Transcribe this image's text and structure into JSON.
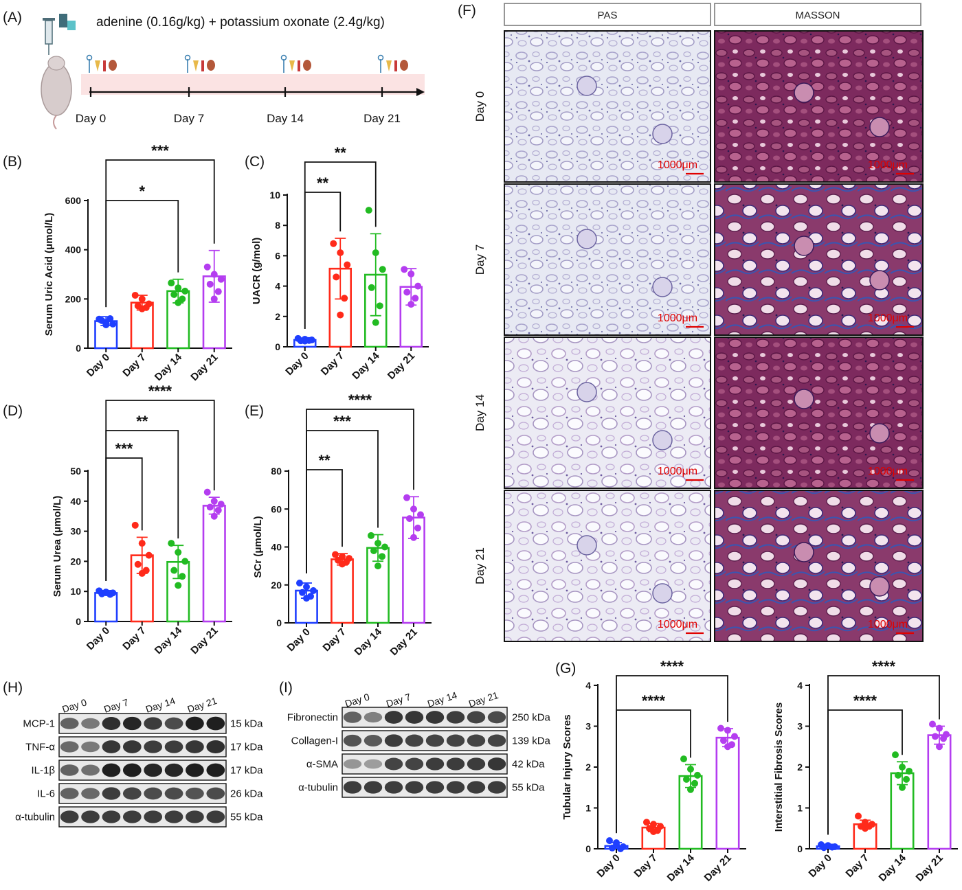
{
  "panels": {
    "A": "(A)",
    "B": "(B)",
    "C": "(C)",
    "D": "(D)",
    "E": "(E)",
    "F": "(F)",
    "G": "(G)",
    "H": "(H)",
    "I": "(I)"
  },
  "timeline": {
    "treatment": "adenine (0.16g/kg) + potassium oxonate (2.4g/kg)",
    "days": [
      "Day 0",
      "Day 7",
      "Day 14",
      "Day 21"
    ]
  },
  "colors": {
    "day0": "#1f3fff",
    "day7": "#ff2a1a",
    "day14": "#22bb22",
    "day21": "#b43df0"
  },
  "chart_data": [
    {
      "id": "B",
      "type": "bar",
      "ylabel": "Serum Uric Acid (μmol/L)",
      "categories": [
        "Day 0",
        "Day 7",
        "Day 14",
        "Day 21"
      ],
      "ylim": [
        0,
        600
      ],
      "yticks": [
        0,
        200,
        400,
        600
      ],
      "values": [
        110,
        185,
        232,
        292
      ],
      "sd": [
        18,
        30,
        48,
        105
      ],
      "points": [
        [
          118,
          105,
          98,
          112,
          120,
          95
        ],
        [
          215,
          200,
          180,
          172,
          165,
          160
        ],
        [
          265,
          245,
          232,
          218,
          200,
          185
        ],
        [
          330,
          300,
          280,
          260,
          230,
          200
        ]
      ],
      "significance": [
        {
          "from": "Day 0",
          "to": "Day 14",
          "label": "*"
        },
        {
          "from": "Day 0",
          "to": "Day 21",
          "label": "***"
        }
      ]
    },
    {
      "id": "C",
      "type": "bar",
      "ylabel": "UACR (g/mol)",
      "categories": [
        "Day 0",
        "Day 7",
        "Day 14",
        "Day 21"
      ],
      "ylim": [
        0,
        10
      ],
      "yticks": [
        0,
        2,
        4,
        6,
        8,
        10
      ],
      "values": [
        0.45,
        5.15,
        4.75,
        3.95
      ],
      "sd": [
        0.1,
        2.0,
        2.7,
        1.2
      ],
      "points": [
        [
          0.55,
          0.5,
          0.45,
          0.4,
          0.42,
          0.38
        ],
        [
          6.8,
          6.2,
          5.4,
          4.6,
          3.2,
          2.1
        ],
        [
          9.0,
          6.2,
          5.1,
          3.9,
          2.7,
          1.6
        ],
        [
          5.1,
          4.8,
          4.0,
          3.6,
          3.2,
          2.8
        ]
      ],
      "significance": [
        {
          "from": "Day 0",
          "to": "Day 7",
          "label": "**"
        },
        {
          "from": "Day 0",
          "to": "Day 14",
          "label": "**"
        }
      ]
    },
    {
      "id": "D",
      "type": "bar",
      "ylabel": "Serum Urea (μmol/L)",
      "categories": [
        "Day 0",
        "Day 7",
        "Day 14",
        "Day 21"
      ],
      "ylim": [
        0,
        50
      ],
      "yticks": [
        0,
        10,
        20,
        30,
        40,
        50
      ],
      "values": [
        9.5,
        22.0,
        19.8,
        38.5
      ],
      "sd": [
        0.8,
        6.0,
        5.5,
        2.8
      ],
      "points": [
        [
          10.2,
          9.8,
          9.5,
          9.2,
          9.0,
          9.6
        ],
        [
          32,
          26,
          22,
          19,
          17,
          16
        ],
        [
          26,
          23,
          20,
          17,
          15,
          12
        ],
        [
          43,
          40,
          39,
          38,
          37,
          35
        ]
      ],
      "significance": [
        {
          "from": "Day 0",
          "to": "Day 7",
          "label": "***"
        },
        {
          "from": "Day 0",
          "to": "Day 14",
          "label": "**"
        },
        {
          "from": "Day 0",
          "to": "Day 21",
          "label": "****"
        }
      ]
    },
    {
      "id": "E",
      "type": "bar",
      "ylabel": "SCr (μmol/L)",
      "categories": [
        "Day 0",
        "Day 7",
        "Day 14",
        "Day 21"
      ],
      "ylim": [
        0,
        80
      ],
      "yticks": [
        0,
        20,
        40,
        60,
        80
      ],
      "values": [
        17,
        33.5,
        39.5,
        55.5
      ],
      "sd": [
        4,
        3,
        7,
        11
      ],
      "points": [
        [
          21,
          19,
          17,
          16,
          14,
          13
        ],
        [
          36,
          35,
          34,
          33,
          32,
          31
        ],
        [
          46,
          42,
          40,
          38,
          35,
          30
        ],
        [
          66,
          60,
          57,
          55,
          50,
          45
        ]
      ],
      "significance": [
        {
          "from": "Day 0",
          "to": "Day 7",
          "label": "**"
        },
        {
          "from": "Day 0",
          "to": "Day 14",
          "label": "***"
        },
        {
          "from": "Day 0",
          "to": "Day 21",
          "label": "****"
        }
      ]
    },
    {
      "id": "G1",
      "type": "bar",
      "ylabel": "Tubular Injury Scores",
      "categories": [
        "Day 0",
        "Day 7",
        "Day 14",
        "Day 21"
      ],
      "ylim": [
        0,
        4
      ],
      "yticks": [
        0,
        1,
        2,
        3,
        4
      ],
      "values": [
        0.07,
        0.52,
        1.78,
        2.72
      ],
      "sd": [
        0.08,
        0.1,
        0.28,
        0.22
      ],
      "points": [
        [
          0.2,
          0.15,
          0.05,
          0.02,
          0.0,
          0.1
        ],
        [
          0.65,
          0.6,
          0.55,
          0.5,
          0.45,
          0.42
        ],
        [
          2.2,
          1.95,
          1.8,
          1.7,
          1.6,
          1.45
        ],
        [
          2.95,
          2.9,
          2.75,
          2.65,
          2.55,
          2.5
        ]
      ],
      "significance": [
        {
          "from": "Day 0",
          "to": "Day 14",
          "label": "****"
        },
        {
          "from": "Day 0",
          "to": "Day 21",
          "label": "****"
        }
      ]
    },
    {
      "id": "G2",
      "type": "bar",
      "ylabel": "Interstitial Fibrosis Scores",
      "categories": [
        "Day 0",
        "Day 7",
        "Day 14",
        "Day 21"
      ],
      "ylim": [
        0,
        4
      ],
      "yticks": [
        0,
        1,
        2,
        3,
        4
      ],
      "values": [
        0.06,
        0.6,
        1.85,
        2.78
      ],
      "sd": [
        0.05,
        0.1,
        0.28,
        0.22
      ],
      "points": [
        [
          0.1,
          0.08,
          0.05,
          0.03,
          0.04,
          0.06
        ],
        [
          0.8,
          0.65,
          0.6,
          0.55,
          0.55,
          0.5
        ],
        [
          2.3,
          2.0,
          1.9,
          1.8,
          1.7,
          1.5
        ],
        [
          3.05,
          2.95,
          2.8,
          2.75,
          2.7,
          2.5
        ]
      ],
      "significance": [
        {
          "from": "Day 0",
          "to": "Day 14",
          "label": "****"
        },
        {
          "from": "Day 0",
          "to": "Day 21",
          "label": "****"
        }
      ]
    }
  ],
  "histology": {
    "stains": [
      "PAS",
      "MASSON"
    ],
    "rows": [
      "Day 0",
      "Day 7",
      "Day 14",
      "Day 21"
    ],
    "scale_bar": "1000μm"
  },
  "western_H": {
    "days": [
      "Day 0",
      "Day 7",
      "Day 14",
      "Day 21"
    ],
    "bands": [
      {
        "name": "MCP-1",
        "kda": "15 kDa"
      },
      {
        "name": "TNF-α",
        "kda": "17 kDa"
      },
      {
        "name": "IL-1β",
        "kda": "17 kDa"
      },
      {
        "name": "IL-6",
        "kda": "26 kDa"
      },
      {
        "name": "α-tubulin",
        "kda": "55 kDa"
      }
    ]
  },
  "western_I": {
    "days": [
      "Day 0",
      "Day 7",
      "Day 14",
      "Day 21"
    ],
    "bands": [
      {
        "name": "Fibronectin",
        "kda": "250 kDa"
      },
      {
        "name": "Collagen-I",
        "kda": "139 kDa"
      },
      {
        "name": "α-SMA",
        "kda": "42 kDa"
      },
      {
        "name": "α-tubulin",
        "kda": "55 kDa"
      }
    ]
  }
}
